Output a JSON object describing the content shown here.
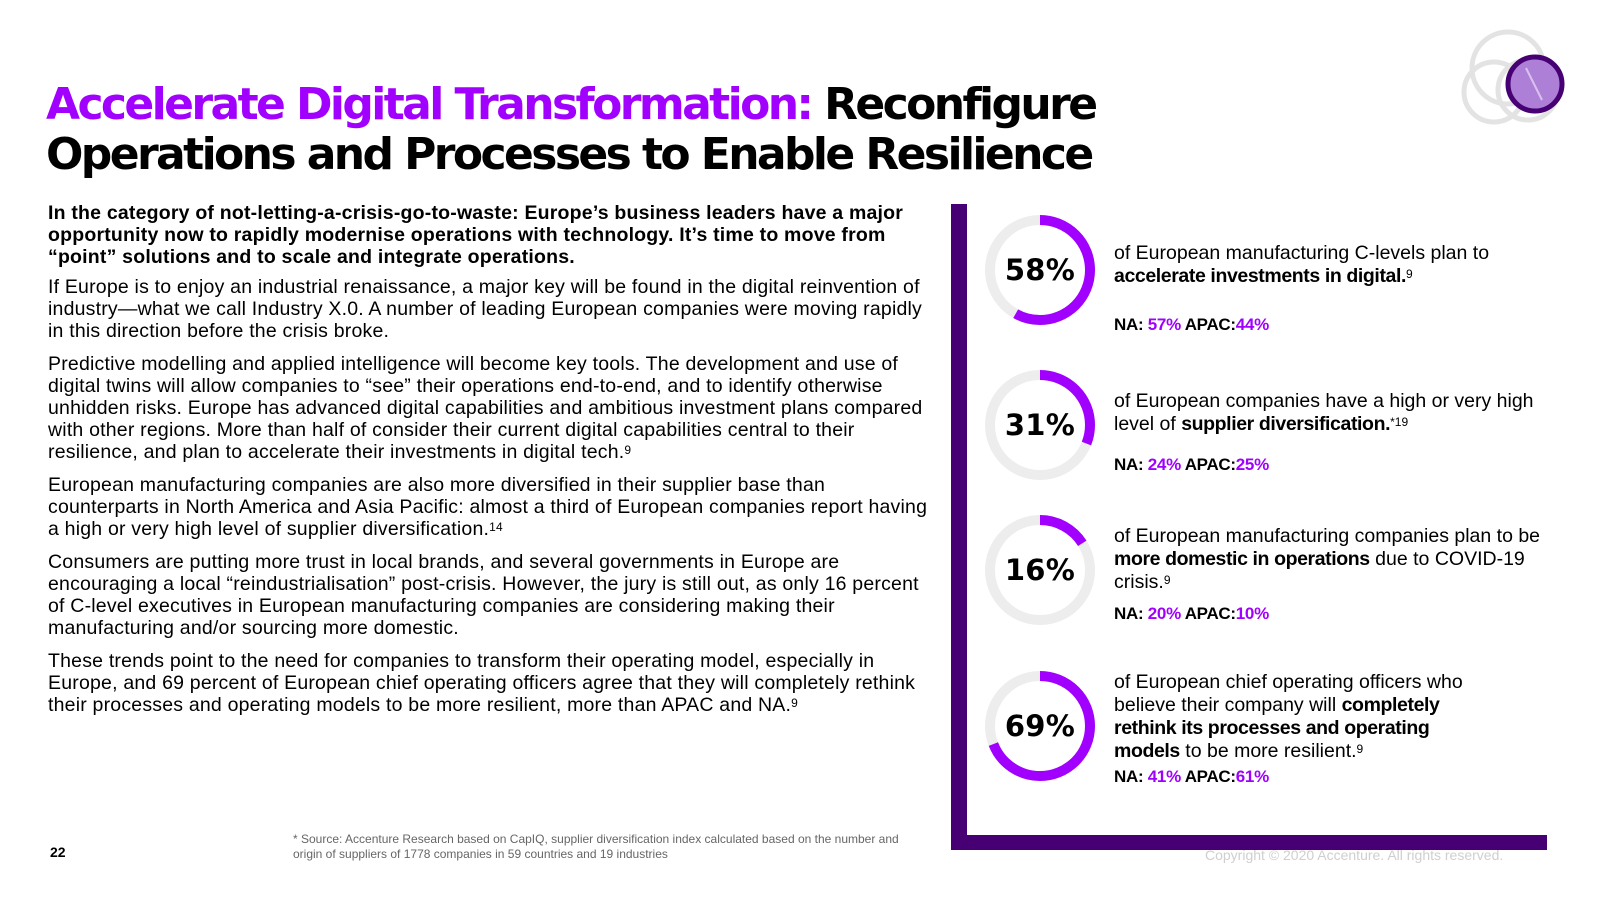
{
  "title": {
    "accent": "Accelerate Digital Transformation:",
    "rest_line1": "Reconfigure",
    "rest_line2": "Operations and Processes to Enable Resilience"
  },
  "colors": {
    "accent": "#a100ff",
    "dark_purple": "#460073",
    "ring_gray": "#ededed"
  },
  "body": {
    "lead": "In the category of not-letting-a-crisis-go-to-waste: Europe’s business leaders have a major opportunity now to rapidly modernise operations with technology. It’s time to move from “point” solutions and to scale and integrate operations.",
    "p1": "If Europe is to enjoy an industrial renaissance, a major key will be found in the digital reinvention of industry—what we call Industry X.0. A number of leading European companies were moving rapidly in this direction before the crisis broke.",
    "p2": "Predictive modelling and applied intelligence will become key tools. The development and use of digital twins will allow companies to “see” their operations end-to-end, and to identify otherwise unhidden risks. Europe has advanced digital capabilities and ambitious investment plans compared with other regions. More than half of consider their current digital capabilities central to their resilience, and plan to accelerate their investments in digital tech.",
    "p2_ref": "9",
    "p3": "European manufacturing companies are also more diversified in their supplier base than counterparts in North America and Asia Pacific: almost a third of European companies report having a high or very high level of supplier diversification.",
    "p3_ref": "14",
    "p4": "Consumers are putting more trust in local brands, and several governments in Europe are encouraging a local “reindustrialisation” post-crisis. However, the jury is still out, as only 16 percent of C-level executives in European manufacturing companies are considering making their manufacturing and/or sourcing more domestic.",
    "p5": "These trends point to the need for companies to transform their operating model, especially in Europe, and 69 percent of European chief operating officers agree that they will completely rethink their processes and operating models to be more resilient, more than APAC and NA.",
    "p5_ref": "9"
  },
  "stats": [
    {
      "value": 58,
      "label": "58%",
      "text_pre": "of European manufacturing C-levels plan to ",
      "text_bold": "accelerate investments in digital.",
      "text_post": "",
      "ref": "9",
      "na_label": "NA:",
      "na": "57%",
      "apac_label": "APAC:",
      "apac": "44%"
    },
    {
      "value": 31,
      "label": "31%",
      "text_pre": "of European companies have a high or very high level of ",
      "text_bold": "supplier diversification.",
      "text_post": "",
      "ref": "*19",
      "na_label": "NA:",
      "na": "24%",
      "apac_label": "APAC:",
      "apac": "25%"
    },
    {
      "value": 16,
      "label": "16%",
      "text_pre": "of European manufacturing companies plan to be ",
      "text_bold": "more domestic in operations",
      "text_post": " due to COVID-19 crisis.",
      "ref": "9",
      "na_label": "NA:",
      "na": "20%",
      "apac_label": "APAC:",
      "apac": "10%"
    },
    {
      "value": 69,
      "label": "69%",
      "text_pre": "of European chief operating officers who believe their company will ",
      "text_bold": "completely rethink its processes and operating models",
      "text_post": " to be more resilient.",
      "ref": "9",
      "na_label": "NA:",
      "na": "41%",
      "apac_label": "APAC:",
      "apac": "61%"
    }
  ],
  "footer": {
    "page_number": "22",
    "footnote": "* Source: Accenture Research based on CapIQ, supplier diversification index calculated based on the number and origin of suppliers of 1778 companies in 59 countries and 19 industries",
    "copyright": "Copyright © 2020 Accenture. All rights reserved."
  }
}
